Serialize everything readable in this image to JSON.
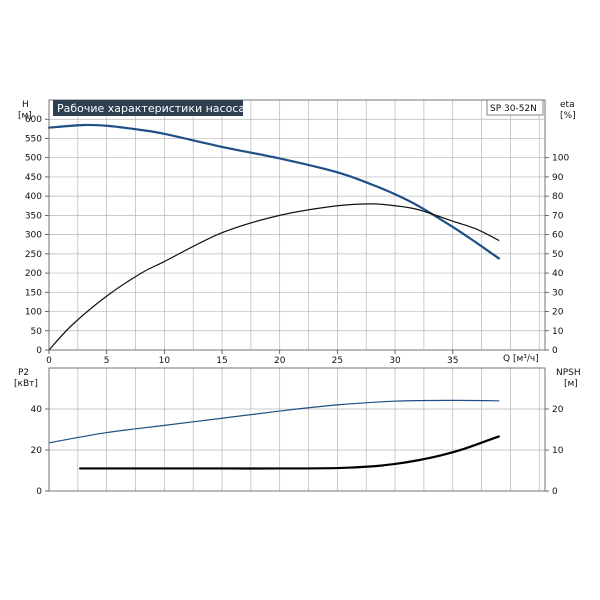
{
  "header": {
    "title": "Рабочие характеристики насоса",
    "model": "SP 30-52N",
    "title_bg_color": "#2e3f52"
  },
  "chart_data": [
    {
      "type": "line",
      "name": "performance",
      "axes": {
        "left_title": "H",
        "left_unit": "[м]",
        "right_title": "eta",
        "right_unit": "[%]",
        "x_title": "Q [м³/ч]",
        "xlim": [
          0,
          43
        ],
        "ylim_left": [
          0,
          650
        ],
        "ylim_right": [
          0,
          130
        ],
        "x_ticks": [
          0,
          5,
          10,
          15,
          20,
          25,
          30,
          35
        ],
        "left_ticks": [
          0,
          50,
          100,
          150,
          200,
          250,
          300,
          350,
          400,
          450,
          500,
          550,
          600
        ],
        "right_ticks": [
          0,
          10,
          20,
          30,
          40,
          50,
          60,
          70,
          80,
          90,
          100
        ],
        "grid": true
      },
      "series": [
        {
          "key": "head",
          "axis": "left",
          "color": "#1e4f86",
          "width": 2.2,
          "x": [
            0,
            3,
            5,
            8,
            10,
            15,
            20,
            25,
            28,
            30,
            32,
            35,
            37,
            39
          ],
          "y": [
            578,
            585,
            583,
            572,
            562,
            528,
            498,
            462,
            430,
            405,
            375,
            320,
            280,
            238
          ]
        },
        {
          "key": "efficiency",
          "axis": "right",
          "color": "#111111",
          "width": 1.2,
          "x": [
            0,
            2,
            5,
            8,
            10,
            15,
            20,
            25,
            28,
            30,
            32,
            35,
            37,
            39
          ],
          "y": [
            0,
            13,
            28,
            40,
            46,
            61,
            70,
            75,
            76,
            75,
            73,
            67,
            63,
            57
          ]
        }
      ]
    },
    {
      "type": "line",
      "name": "power-npsh",
      "axes": {
        "left_title": "P2",
        "left_unit": "[кВт]",
        "right_title": "NPSH",
        "right_unit": "[м]",
        "xlim": [
          0,
          43
        ],
        "ylim_left": [
          0,
          60
        ],
        "ylim_right": [
          0,
          30
        ],
        "left_ticks": [
          0,
          20,
          40
        ],
        "right_ticks": [
          0,
          10,
          20
        ],
        "grid": true
      },
      "series": [
        {
          "key": "power",
          "axis": "left",
          "color": "#1e4f86",
          "width": 1.2,
          "x": [
            0,
            5,
            10,
            15,
            20,
            25,
            30,
            35,
            39
          ],
          "y": [
            23.5,
            28.5,
            32,
            35.5,
            39,
            42,
            43.8,
            44.2,
            44
          ]
        },
        {
          "key": "npsh",
          "axis": "right",
          "color": "#000000",
          "width": 2.2,
          "x": [
            2.7,
            5,
            10,
            15,
            20,
            25,
            28,
            30,
            32,
            34,
            36,
            38,
            39
          ],
          "y": [
            5.5,
            5.5,
            5.5,
            5.5,
            5.5,
            5.6,
            6.0,
            6.6,
            7.5,
            8.7,
            10.3,
            12.3,
            13.3
          ]
        }
      ]
    }
  ]
}
